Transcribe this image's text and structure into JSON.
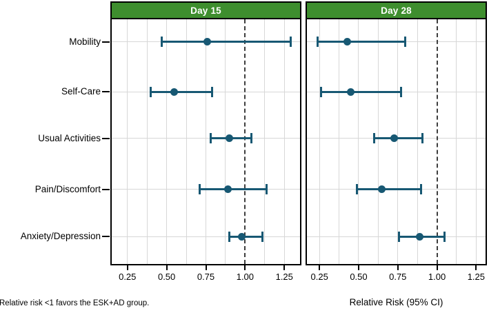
{
  "chart_data": {
    "type": "scatter",
    "variant": "forest-plot",
    "categories": [
      "Mobility",
      "Self-Care",
      "Usual Activities",
      "Pain/Discomfort",
      "Anxiety/Depression"
    ],
    "panels": [
      {
        "title": "Day 15",
        "xlim": [
          0.15,
          1.35
        ],
        "series": [
          {
            "category": "Mobility",
            "rr": 0.75,
            "ci_low": 0.46,
            "ci_high": 1.28
          },
          {
            "category": "Self-Care",
            "rr": 0.54,
            "ci_low": 0.39,
            "ci_high": 0.78
          },
          {
            "category": "Usual Activities",
            "rr": 0.89,
            "ci_low": 0.77,
            "ci_high": 1.03
          },
          {
            "category": "Pain/Discomfort",
            "rr": 0.88,
            "ci_low": 0.7,
            "ci_high": 1.13
          },
          {
            "category": "Anxiety/Depression",
            "rr": 0.97,
            "ci_low": 0.89,
            "ci_high": 1.1
          }
        ]
      },
      {
        "title": "Day 28",
        "xlim": [
          0.17,
          1.31
        ],
        "series": [
          {
            "category": "Mobility",
            "rr": 0.42,
            "ci_low": 0.23,
            "ci_high": 0.79
          },
          {
            "category": "Self-Care",
            "rr": 0.44,
            "ci_low": 0.25,
            "ci_high": 0.76
          },
          {
            "category": "Usual Activities",
            "rr": 0.72,
            "ci_low": 0.59,
            "ci_high": 0.9
          },
          {
            "category": "Pain/Discomfort",
            "rr": 0.64,
            "ci_low": 0.48,
            "ci_high": 0.89
          },
          {
            "category": "Anxiety/Depression",
            "rr": 0.88,
            "ci_low": 0.75,
            "ci_high": 1.04
          }
        ]
      }
    ],
    "x_ticks": [
      0.25,
      0.5,
      0.75,
      1.0,
      1.25
    ],
    "x_tick_labels": [
      "0.25",
      "0.50",
      "0.75",
      "1.00",
      "1.25"
    ],
    "reference_line": 1.0,
    "minor_grid_step": 0.125,
    "grid": true,
    "xlabel": "Relative Risk (95% CI)",
    "footnote": "Relative risk <1 favors the ESK+AD group.",
    "colors": {
      "header_bg": "#3e8e2e",
      "header_text": "#ffffff",
      "marker": "#175873",
      "grid": "#d7d7d7",
      "border": "#000000",
      "reference_line": "#3d3d3d"
    }
  }
}
